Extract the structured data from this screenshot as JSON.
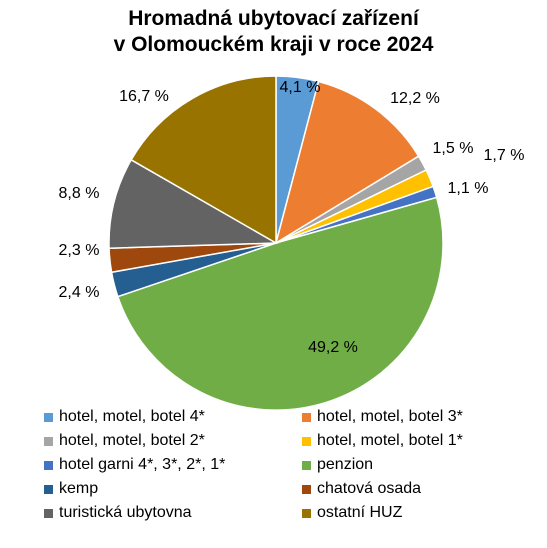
{
  "chart_data": {
    "type": "pie",
    "title": [
      "Hromadná ubytovací zařízení",
      "v Olomouckém kraji v roce 2024"
    ],
    "slices": [
      {
        "label": "hotel, motel, botel 4*",
        "value": 4.1,
        "display": "4,1 %",
        "color": "#5B9BD5"
      },
      {
        "label": "hotel, motel, botel 3*",
        "value": 12.2,
        "display": "12,2 %",
        "color": "#ED7D31"
      },
      {
        "label": "hotel, motel, botel 2*",
        "value": 1.5,
        "display": "1,5 %",
        "color": "#A5A5A5"
      },
      {
        "label": "hotel, motel, botel 1*",
        "value": 1.7,
        "display": "1,7 %",
        "color": "#FFC000"
      },
      {
        "label": "hotel garni 4*, 3*, 2*, 1*",
        "value": 1.1,
        "display": "1,1 %",
        "color": "#4472C4"
      },
      {
        "label": "penzion",
        "value": 49.2,
        "display": "49,2 %",
        "color": "#70AD47"
      },
      {
        "label": "kemp",
        "value": 2.4,
        "display": "2,4 %",
        "color": "#255E91"
      },
      {
        "label": "chatová osada",
        "value": 2.3,
        "display": "2,3 %",
        "color": "#9E480E"
      },
      {
        "label": "turistická ubytovna",
        "value": 8.8,
        "display": "8,8 %",
        "color": "#636363"
      },
      {
        "label": "ostatní HUZ",
        "value": 16.7,
        "display": "16,7 %",
        "color": "#997300"
      }
    ],
    "legend_position": "bottom"
  }
}
